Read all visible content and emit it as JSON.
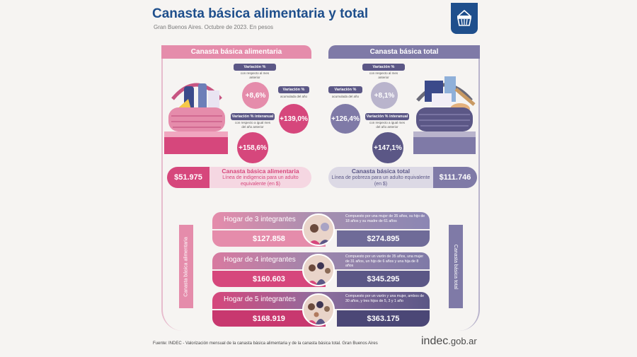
{
  "header": {
    "title": "Canasta básica alimentaria y total",
    "subtitle": "Gran Buenos Aires. Octubre de 2023. En pesos"
  },
  "alimentaria": {
    "header": "Canasta básica alimentaria",
    "variacion_mensual": {
      "label": "Variación %",
      "sublabel": "con respecto al mes anterior",
      "value": "+8,6%"
    },
    "variacion_acumulada": {
      "label": "Variación %",
      "sublabel": "acumulada del año",
      "value": "+139,0%"
    },
    "variacion_interanual": {
      "label": "Variación % interanual",
      "sublabel": "con respecto a igual mes del año anterior",
      "value": "+158,6%"
    },
    "price": "$51.975",
    "desc_title": "Canasta básica alimentaria",
    "desc_text": "Línea de indigencia para un adulto equivalente (en $)",
    "side_label": "Canasta básica alimentaria"
  },
  "total": {
    "header": "Canasta básica total",
    "variacion_mensual": {
      "label": "Variación %",
      "sublabel": "con respecto al mes anterior",
      "value": "+8,1%"
    },
    "variacion_acumulada": {
      "label": "Variación %",
      "sublabel": "acumulada del año",
      "value": "+126,4%"
    },
    "variacion_interanual": {
      "label": "Variación % interanual",
      "sublabel": "con respecto a igual mes del año anterior",
      "value": "+147,1%"
    },
    "price": "$111.746",
    "desc_title": "Canasta básica total",
    "desc_text": "Línea de pobreza para un adulto equivalente (en $)",
    "side_label": "Canasta básica total"
  },
  "hogares": [
    {
      "label": "Hogar de 3 integrantes",
      "desc": "Compuesto por una mujer de 35 años, su hijo de 18 años y su madre de 61 años",
      "alimentaria": "$127.858",
      "total": "$274.895"
    },
    {
      "label": "Hogar de 4 integrantes",
      "desc": "Compuesto por un varón de 35 años, una mujer de 31 años, un hijo de 6 años y una hija de 8 años",
      "alimentaria": "$160.603",
      "total": "$345.295"
    },
    {
      "label": "Hogar de 5 integrantes",
      "desc": "Compuesto por un varón y una mujer, ambos de 30 años, y tres hijos de 5, 3 y 1 año",
      "alimentaria": "$168.919",
      "total": "$363.175"
    }
  ],
  "footer": {
    "source": "Fuente: INDEC - Valorización mensual de la canasta básica alimentaria y de la canasta básica total. Gran Buenos Aires",
    "logo_main": "indec",
    "logo_domain": ".gob.ar"
  },
  "colors": {
    "title_blue": "#1f4f8c",
    "alimentaria_pink": "#e58cab",
    "alimentaria_dark": "#d6477c",
    "total_purple": "#7f7aa7",
    "total_dark": "#5b5786"
  },
  "icons": [
    "basket-icon",
    "food-basket-illustration",
    "goods-basket-illustration",
    "family-icon"
  ]
}
